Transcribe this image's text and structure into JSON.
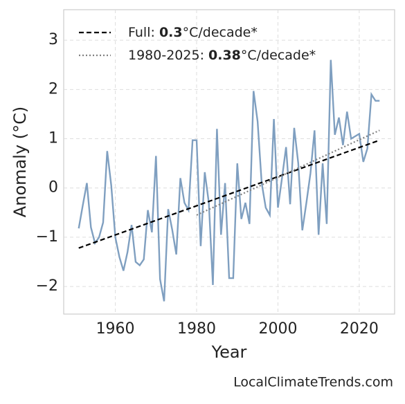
{
  "chart_data": {
    "type": "line",
    "xlabel": "Year",
    "ylabel": "Anomaly (°C)",
    "footer": "LocalClimateTrends.com",
    "x": [
      1951,
      1952,
      1953,
      1954,
      1955,
      1956,
      1957,
      1958,
      1959,
      1960,
      1961,
      1962,
      1963,
      1964,
      1965,
      1966,
      1967,
      1968,
      1969,
      1970,
      1971,
      1972,
      1973,
      1974,
      1975,
      1976,
      1977,
      1978,
      1979,
      1980,
      1981,
      1982,
      1983,
      1984,
      1985,
      1986,
      1987,
      1988,
      1989,
      1990,
      1991,
      1992,
      1993,
      1994,
      1995,
      1996,
      1997,
      1998,
      1999,
      2000,
      2001,
      2002,
      2003,
      2004,
      2005,
      2006,
      2007,
      2008,
      2009,
      2010,
      2011,
      2012,
      2013,
      2014,
      2015,
      2016,
      2017,
      2018,
      2019,
      2020,
      2021,
      2022,
      2023,
      2024,
      2025
    ],
    "values": [
      -0.82,
      -0.35,
      0.1,
      -0.8,
      -1.12,
      -1.0,
      -0.7,
      0.75,
      0.05,
      -1.0,
      -1.4,
      -1.68,
      -1.3,
      -0.75,
      -1.5,
      -1.57,
      -1.45,
      -0.45,
      -0.9,
      0.65,
      -1.85,
      -2.3,
      -0.43,
      -0.85,
      -1.35,
      0.2,
      -0.3,
      -0.45,
      0.97,
      0.97,
      -1.18,
      0.32,
      -0.3,
      -1.97,
      1.2,
      -0.95,
      0.1,
      -1.83,
      -1.83,
      0.5,
      -0.63,
      -0.3,
      -0.73,
      1.97,
      1.35,
      0.1,
      -0.4,
      -0.55,
      1.4,
      -0.4,
      0.2,
      0.83,
      -0.33,
      1.22,
      0.5,
      -0.86,
      -0.3,
      0.3,
      1.17,
      -0.95,
      0.5,
      -0.73,
      2.6,
      1.08,
      1.43,
      0.87,
      1.55,
      1.0,
      1.05,
      1.1,
      0.53,
      0.8,
      1.9,
      1.77,
      1.77
    ],
    "color": "#7f9fc0",
    "trends": [
      {
        "name": "Full: 0.3°C/decade*",
        "color": "#000000",
        "style": "dashed",
        "x": [
          1951,
          2025
        ],
        "values": [
          -1.22,
          0.97
        ]
      },
      {
        "name": "1980-2025: 0.38°C/decade*",
        "color": "#808080",
        "style": "dotted",
        "x": [
          1980,
          2025
        ],
        "values": [
          -0.55,
          1.17
        ]
      }
    ],
    "xlim": [
      1947.3,
      2028.7
    ],
    "xticks": [
      1960,
      1980,
      2000,
      2020
    ],
    "ylim": [
      -2.56,
      3.62
    ],
    "yticks": [
      {
        "value": -2,
        "label": "−2"
      },
      {
        "value": -1,
        "label": "−1"
      },
      0,
      1,
      2,
      3
    ],
    "grid": true,
    "legend": "upper left"
  }
}
